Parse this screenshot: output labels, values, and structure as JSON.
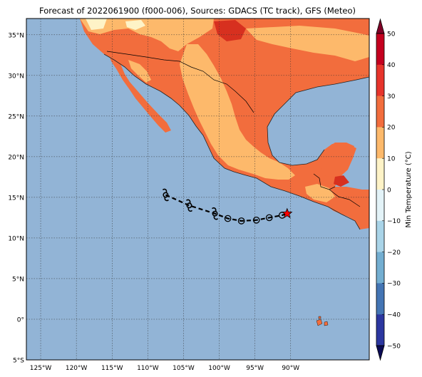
{
  "title": "Forecast of 2022061900 (f000-006), Sources: GDACS (TC track), GFS (Meteo)",
  "lat_labels": [
    "35°N",
    "30°N",
    "25°N",
    "20°N",
    "15°N",
    "10°N",
    "5°N",
    "0°",
    "5°S"
  ],
  "lon_labels": [
    "125°W",
    "120°W",
    "115°W",
    "110°W",
    "105°W",
    "100°W",
    "95°W",
    "90°W"
  ],
  "colorbar": {
    "label": "Min Temperature (°C)",
    "ticks": [
      "50",
      "40",
      "30",
      "20",
      "10",
      "0",
      "−10",
      "−20",
      "−30",
      "−40",
      "−50"
    ]
  },
  "colors": {
    "ocean": "#92b4d6",
    "land_20_30": "#f26d3d",
    "land_10_20": "#fdb96b",
    "land_0_10": "#fef3c7",
    "land_30_40": "#d7301f",
    "border": "#000000",
    "storm_current": "#ff0000"
  },
  "chart_data": {
    "type": "map",
    "extent_lon": [
      -127,
      -79
    ],
    "extent_lat": [
      -5,
      37
    ],
    "track": [
      {
        "lon": -107.5,
        "lat": 15.3,
        "symbol": "tropical-storm"
      },
      {
        "lon": -104.2,
        "lat": 14.0,
        "symbol": "tropical-storm"
      },
      {
        "lon": -100.6,
        "lat": 13.0,
        "symbol": "tropical-storm"
      },
      {
        "lon": -98.8,
        "lat": 12.4,
        "symbol": "depression"
      },
      {
        "lon": -96.9,
        "lat": 12.1,
        "symbol": "depression"
      },
      {
        "lon": -94.8,
        "lat": 12.2,
        "symbol": "depression"
      },
      {
        "lon": -93.0,
        "lat": 12.5,
        "symbol": "depression"
      },
      {
        "lon": -91.2,
        "lat": 12.8,
        "symbol": "depression"
      },
      {
        "lon": -90.5,
        "lat": 13.0,
        "symbol": "current-position"
      }
    ]
  }
}
